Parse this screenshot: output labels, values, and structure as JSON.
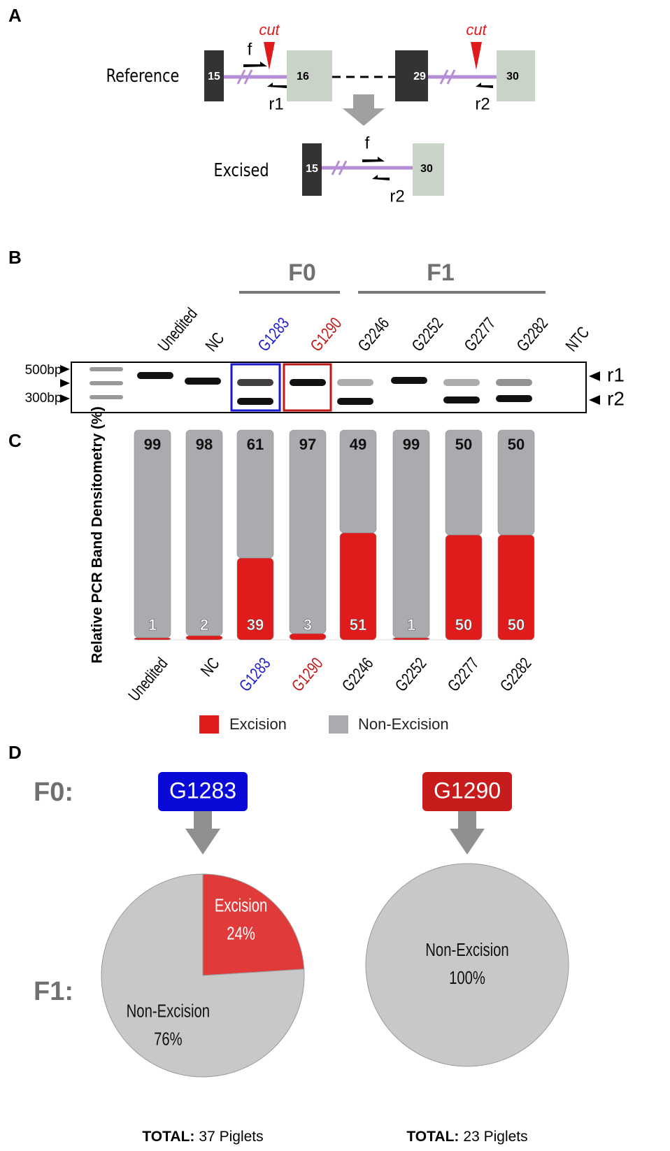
{
  "panel_labels": [
    "A",
    "B",
    "C",
    "D"
  ],
  "diagram": {
    "reference_label": "Reference",
    "excised_label": "Excised",
    "cut_label": "cut",
    "exons": [
      "15",
      "16",
      "29",
      "30"
    ],
    "primers": [
      "f",
      "r1",
      "r2"
    ]
  },
  "gel": {
    "groups": [
      "F0",
      "F1"
    ],
    "lanes": [
      "Unedited",
      "NC",
      "G1283",
      "G1290",
      "G2246",
      "G2252",
      "G2277",
      "G2282",
      "NTC"
    ],
    "lane_colors": [
      "#000000",
      "#000000",
      "#1a1ad0",
      "#c01818",
      "#000000",
      "#000000",
      "#000000",
      "#000000",
      "#000000"
    ],
    "size_markers": [
      "500bp",
      "300bp"
    ],
    "band_labels": [
      "r1",
      "r2"
    ]
  },
  "chart_data": [
    {
      "type": "bar",
      "stacked": true,
      "y_label": "Relative PCR Band Densitometry (%)",
      "categories": [
        "Unedited",
        "NC",
        "G1283",
        "G1290",
        "G2246",
        "G2252",
        "G2277",
        "G2282"
      ],
      "category_colors": [
        "#000000",
        "#000000",
        "#1a1ad0",
        "#c01818",
        "#000000",
        "#000000",
        "#000000",
        "#000000"
      ],
      "ylim": [
        0,
        100
      ],
      "series": [
        {
          "name": "Excision",
          "color": "#e01b1b",
          "values": [
            1,
            2,
            39,
            3,
            51,
            1,
            50,
            50
          ]
        },
        {
          "name": "Non-Excision",
          "color": "#a9abae",
          "values": [
            99,
            98,
            61,
            97,
            49,
            99,
            50,
            50
          ]
        }
      ]
    },
    {
      "type": "pie",
      "row_labels": [
        "F0:",
        "F1:"
      ],
      "parent_label": "G1283",
      "parent_color": "#0a0ad8",
      "categories": [
        "Excision",
        "Non-Excision"
      ],
      "values": [
        24,
        76
      ],
      "value_labels": [
        "24%",
        "76%"
      ],
      "colors": [
        "#e03a3a",
        "#c8c8c8"
      ],
      "total_label": "TOTAL:",
      "total_text": "37 Piglets"
    },
    {
      "type": "pie",
      "parent_label": "G1290",
      "parent_color": "#c81c1c",
      "categories": [
        "Non-Excision"
      ],
      "values": [
        100
      ],
      "value_labels": [
        "100%"
      ],
      "colors": [
        "#c8c8c8"
      ],
      "total_label": "TOTAL:",
      "total_text": "23 Piglets"
    }
  ]
}
